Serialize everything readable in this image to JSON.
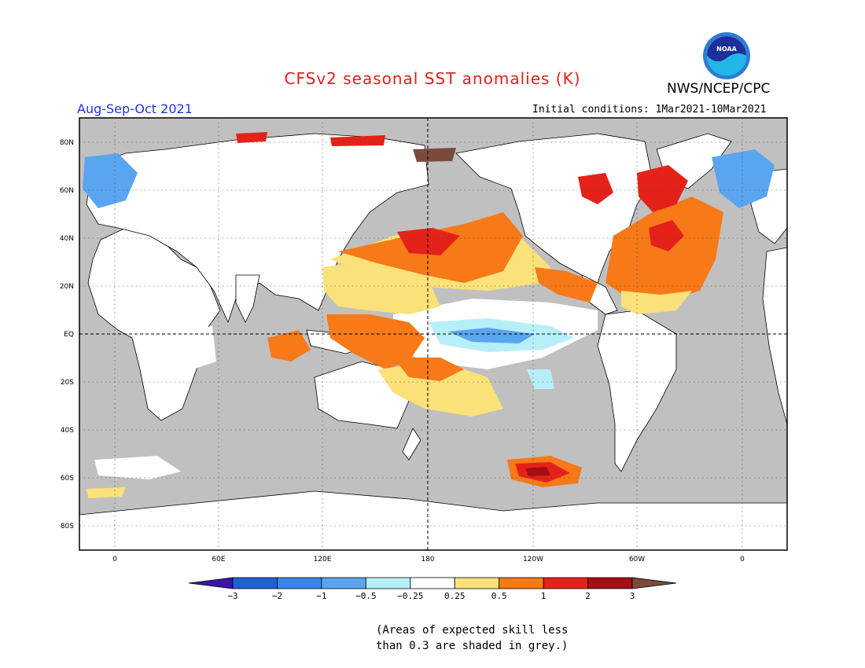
{
  "title": "CFSv2 seasonal SST anomalies (K)",
  "organization": "NWS/NCEP/CPC",
  "logo_text": "NOAA",
  "season": "Aug-Sep-Oct 2021",
  "initial_conditions": "Initial conditions: 1Mar2021-10Mar2021",
  "colors": {
    "title": "#e0201b",
    "season": "#2233dd",
    "land": "#ffffff",
    "grey_low_skill": "#c0c0c0",
    "ocean_neutral": "#ffffff"
  },
  "map": {
    "lat_labels": [
      "80N",
      "60N",
      "40N",
      "20N",
      "EQ",
      "20S",
      "40S",
      "60S",
      "80S"
    ],
    "lon_labels": [
      "0",
      "60E",
      "120E",
      "180",
      "120W",
      "60W",
      "0"
    ]
  },
  "colorbar": {
    "tick_labels": [
      "-3",
      "-2",
      "-1",
      "-0.5",
      "-0.25",
      "0.25",
      "0.5",
      "1",
      "2",
      "3"
    ],
    "colors": [
      "#3a16a8",
      "#1f62d6",
      "#3a86e8",
      "#5aa5ef",
      "#b6effa",
      "#ffffff",
      "#fbe17a",
      "#f77918",
      "#e4221a",
      "#a50e12",
      "#7a4a3a"
    ]
  },
  "note_lines": [
    "(Areas of expected skill less",
    "than 0.3 are shaded in grey.)"
  ]
}
